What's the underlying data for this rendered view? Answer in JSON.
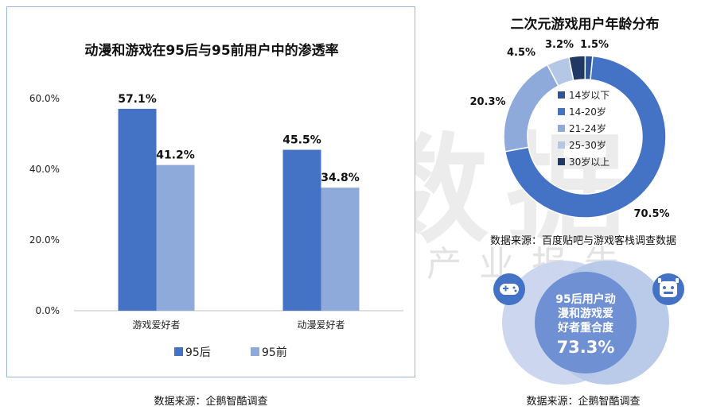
{
  "watermark": {
    "main": "伽马数据",
    "sub": "微信号：游戏产业报告"
  },
  "left_panel": {
    "source": "数据来源：企鹅智酷调查"
  },
  "right_panel": {
    "source_top": "数据来源：百度贴吧与游戏客栈调查数据",
    "source_bottom": "数据来源：企鹅智酷调查",
    "venn": {
      "line1": "95后用户动",
      "line2": "漫和游戏爱",
      "line3": "好者重合度",
      "value": "73.3%",
      "left_icon": "gamepad-icon",
      "right_icon": "mascot-icon"
    }
  },
  "chart_data": [
    {
      "type": "bar",
      "title": "动漫和游戏在95后与95前用户中的渗透率",
      "categories": [
        "游戏爱好者",
        "动漫爱好者"
      ],
      "series": [
        {
          "name": "95后",
          "values": [
            57.1,
            45.5
          ],
          "labels": [
            "57.1%",
            "45.5%"
          ],
          "color": "#4472c4"
        },
        {
          "name": "95前",
          "values": [
            41.2,
            34.8
          ],
          "labels": [
            "41.2%",
            "34.8%"
          ],
          "color": "#8eaadb"
        }
      ],
      "yticks": [
        "0.0%",
        "20.0%",
        "40.0%",
        "60.0%"
      ],
      "ylim": [
        0,
        60
      ],
      "legend": "bottom"
    },
    {
      "type": "pie",
      "title": "二次元游戏用户年龄分布",
      "slices": [
        {
          "name": "14岁以下",
          "value": 1.5,
          "label": "1.5%",
          "color": "#2e5597"
        },
        {
          "name": "14-20岁",
          "value": 70.5,
          "label": "70.5%",
          "color": "#4472c4"
        },
        {
          "name": "21-24岁",
          "value": 20.3,
          "label": "20.3%",
          "color": "#8eaadb"
        },
        {
          "name": "25-30岁",
          "value": 4.5,
          "label": "4.5%",
          "color": "#b4c7e7"
        },
        {
          "name": "30岁以上",
          "value": 3.2,
          "label": "3.2%",
          "color": "#1f3864"
        }
      ],
      "legend": "center"
    }
  ]
}
